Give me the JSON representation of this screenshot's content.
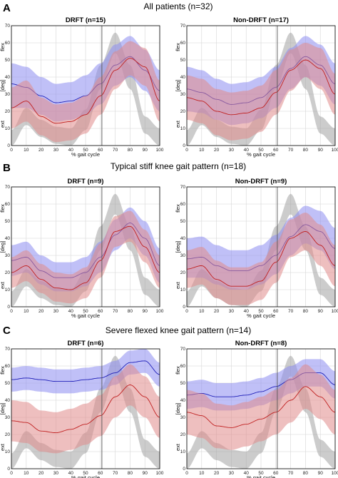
{
  "figure": {
    "rows": [
      {
        "letter": "A",
        "title": "All patients (n=32)"
      },
      {
        "letter": "B",
        "title": "Typical stiff knee gait pattern (n=18)"
      },
      {
        "letter": "C",
        "title": "Severe flexed knee gait pattern (n=14)"
      }
    ]
  },
  "colors": {
    "normal_band": "#9a9a9a",
    "pre_band": "#8c8cf0",
    "pre_line": "#2020b8",
    "post_band": "#e08a8a",
    "post_line": "#c02020",
    "axis": "#000000",
    "grid": "#d6d6d6"
  },
  "chart_data": [
    {
      "type": "line",
      "row": 0,
      "col": 0,
      "title": "DRFT (n=15)",
      "xlabel": "% gait cycle",
      "ylabel": "[deg]",
      "y_top_label": "flex",
      "y_bottom_label": "ext",
      "xlim": [
        0,
        100
      ],
      "ylim": [
        0,
        70
      ],
      "xticks": [
        0,
        10,
        20,
        30,
        40,
        50,
        60,
        70,
        80,
        90,
        100
      ],
      "yticks": [
        0,
        10,
        20,
        30,
        40,
        50,
        60,
        70
      ],
      "grid": true,
      "toe_off_x": 61,
      "x": [
        0,
        10,
        20,
        30,
        40,
        50,
        60,
        70,
        80,
        90,
        100
      ],
      "series": [
        {
          "role": "normal",
          "mean": [
            4,
            17,
            10,
            6,
            5,
            15,
            40,
            60,
            40,
            12,
            5
          ],
          "lower": [
            0,
            12,
            5,
            1,
            0,
            9,
            33,
            54,
            33,
            7,
            0
          ],
          "upper": [
            9,
            22,
            15,
            11,
            10,
            21,
            47,
            66,
            47,
            17,
            10
          ]
        },
        {
          "role": "pre",
          "mean": [
            36,
            34,
            29,
            25,
            26,
            29,
            36,
            47,
            52,
            44,
            32
          ],
          "lower": [
            22,
            22,
            18,
            14,
            15,
            18,
            24,
            35,
            40,
            32,
            20
          ],
          "upper": [
            48,
            46,
            40,
            36,
            37,
            41,
            48,
            59,
            64,
            56,
            44
          ]
        },
        {
          "role": "post",
          "mean": [
            22,
            26,
            17,
            13,
            14,
            18,
            29,
            44,
            51,
            46,
            26
          ],
          "lower": [
            10,
            14,
            6,
            2,
            3,
            7,
            18,
            33,
            41,
            35,
            14
          ],
          "upper": [
            34,
            38,
            28,
            24,
            25,
            29,
            40,
            55,
            61,
            57,
            38
          ]
        }
      ]
    },
    {
      "type": "line",
      "row": 0,
      "col": 1,
      "title": "Non-DRFT (n=17)",
      "xlabel": "% gait cycle",
      "ylabel": "[deg]",
      "y_top_label": "flex",
      "y_bottom_label": "ext",
      "xlim": [
        0,
        100
      ],
      "ylim": [
        0,
        70
      ],
      "xticks": [
        0,
        10,
        20,
        30,
        40,
        50,
        60,
        70,
        80,
        90,
        100
      ],
      "yticks": [
        0,
        10,
        20,
        30,
        40,
        50,
        60,
        70
      ],
      "grid": true,
      "toe_off_x": 61,
      "x": [
        0,
        10,
        20,
        30,
        40,
        50,
        60,
        70,
        80,
        90,
        100
      ],
      "series": [
        {
          "role": "normal",
          "mean": [
            4,
            17,
            10,
            6,
            5,
            15,
            40,
            60,
            40,
            12,
            5
          ],
          "lower": [
            0,
            12,
            5,
            1,
            0,
            9,
            33,
            54,
            33,
            7,
            0
          ],
          "upper": [
            9,
            22,
            15,
            11,
            10,
            21,
            47,
            66,
            47,
            17,
            10
          ]
        },
        {
          "role": "pre",
          "mean": [
            33,
            31,
            27,
            24,
            25,
            28,
            34,
            45,
            52,
            47,
            36
          ],
          "lower": [
            20,
            19,
            15,
            12,
            13,
            16,
            22,
            33,
            40,
            35,
            24
          ],
          "upper": [
            46,
            44,
            39,
            36,
            37,
            40,
            46,
            57,
            64,
            59,
            48
          ]
        },
        {
          "role": "post",
          "mean": [
            28,
            26,
            20,
            18,
            19,
            22,
            31,
            44,
            50,
            45,
            30
          ],
          "lower": [
            15,
            13,
            6,
            3,
            4,
            8,
            18,
            32,
            40,
            33,
            18
          ],
          "upper": [
            41,
            39,
            33,
            31,
            32,
            35,
            44,
            56,
            60,
            57,
            42
          ]
        }
      ]
    },
    {
      "type": "line",
      "row": 1,
      "col": 0,
      "title": "DRFT (n=9)",
      "xlabel": "% gait cycle",
      "ylabel": "[deg]",
      "y_top_label": "flex",
      "y_bottom_label": "ext",
      "xlim": [
        0,
        100
      ],
      "ylim": [
        0,
        70
      ],
      "xticks": [
        0,
        10,
        20,
        30,
        40,
        50,
        60,
        70,
        80,
        90,
        100
      ],
      "yticks": [
        0,
        10,
        20,
        30,
        40,
        50,
        60,
        70
      ],
      "grid": true,
      "toe_off_x": 61,
      "x": [
        0,
        10,
        20,
        30,
        40,
        50,
        60,
        70,
        80,
        90,
        100
      ],
      "series": [
        {
          "role": "normal",
          "mean": [
            4,
            17,
            10,
            6,
            5,
            15,
            40,
            60,
            40,
            12,
            5
          ],
          "lower": [
            0,
            12,
            5,
            1,
            0,
            9,
            33,
            54,
            33,
            7,
            0
          ],
          "upper": [
            9,
            22,
            15,
            11,
            10,
            21,
            47,
            66,
            47,
            17,
            10
          ]
        },
        {
          "role": "pre",
          "mean": [
            27,
            29,
            21,
            17,
            17,
            20,
            29,
            42,
            49,
            40,
            24
          ],
          "lower": [
            18,
            20,
            13,
            9,
            9,
            12,
            20,
            33,
            40,
            30,
            14
          ],
          "upper": [
            36,
            38,
            30,
            26,
            26,
            29,
            38,
            51,
            58,
            50,
            34
          ]
        },
        {
          "role": "post",
          "mean": [
            20,
            24,
            16,
            11,
            10,
            14,
            27,
            44,
            47,
            35,
            20
          ],
          "lower": [
            11,
            15,
            8,
            3,
            2,
            5,
            17,
            35,
            38,
            26,
            11
          ],
          "upper": [
            29,
            33,
            25,
            20,
            19,
            23,
            37,
            53,
            56,
            45,
            30
          ]
        }
      ]
    },
    {
      "type": "line",
      "row": 1,
      "col": 1,
      "title": "Non-DRFT (n=9)",
      "xlabel": "% gait cycle",
      "ylabel": "[deg]",
      "y_top_label": "flex",
      "y_bottom_label": "ext",
      "xlim": [
        0,
        100
      ],
      "ylim": [
        0,
        70
      ],
      "xticks": [
        0,
        10,
        20,
        30,
        40,
        50,
        60,
        70,
        80,
        90,
        100
      ],
      "yticks": [
        0,
        10,
        20,
        30,
        40,
        50,
        60,
        70
      ],
      "grid": true,
      "toe_off_x": 61,
      "x": [
        0,
        10,
        20,
        30,
        40,
        50,
        60,
        70,
        80,
        90,
        100
      ],
      "series": [
        {
          "role": "normal",
          "mean": [
            4,
            17,
            10,
            6,
            5,
            15,
            40,
            60,
            40,
            12,
            5
          ],
          "lower": [
            0,
            12,
            5,
            1,
            0,
            9,
            33,
            54,
            33,
            7,
            0
          ],
          "upper": [
            9,
            22,
            15,
            11,
            10,
            21,
            47,
            66,
            47,
            17,
            10
          ]
        },
        {
          "role": "pre",
          "mean": [
            28,
            29,
            24,
            21,
            21,
            24,
            30,
            41,
            48,
            44,
            34
          ],
          "lower": [
            17,
            17,
            13,
            10,
            10,
            13,
            19,
            30,
            37,
            33,
            22
          ],
          "upper": [
            40,
            41,
            36,
            33,
            33,
            36,
            42,
            52,
            59,
            56,
            46
          ]
        },
        {
          "role": "post",
          "mean": [
            22,
            24,
            16,
            12,
            12,
            15,
            26,
            40,
            44,
            36,
            24
          ],
          "lower": [
            11,
            13,
            5,
            1,
            1,
            4,
            14,
            29,
            33,
            24,
            12
          ],
          "upper": [
            33,
            35,
            27,
            23,
            23,
            26,
            38,
            51,
            55,
            48,
            36
          ]
        }
      ]
    },
    {
      "type": "line",
      "row": 2,
      "col": 0,
      "title": "DRFT (n=6)",
      "xlabel": "% gait cycle",
      "ylabel": "[deg]",
      "y_top_label": "flex",
      "y_bottom_label": "ext",
      "xlim": [
        0,
        100
      ],
      "ylim": [
        0,
        70
      ],
      "xticks": [
        0,
        10,
        20,
        30,
        40,
        50,
        60,
        70,
        80,
        90,
        100
      ],
      "yticks": [
        0,
        10,
        20,
        30,
        40,
        50,
        60,
        70
      ],
      "grid": true,
      "toe_off_x": 61,
      "x": [
        0,
        10,
        20,
        30,
        40,
        50,
        60,
        70,
        80,
        90,
        100
      ],
      "series": [
        {
          "role": "normal",
          "mean": [
            4,
            17,
            10,
            6,
            5,
            15,
            40,
            60,
            40,
            12,
            5
          ],
          "lower": [
            0,
            12,
            5,
            1,
            0,
            9,
            33,
            54,
            33,
            7,
            0
          ],
          "upper": [
            9,
            22,
            15,
            11,
            10,
            21,
            47,
            66,
            47,
            17,
            10
          ]
        },
        {
          "role": "pre",
          "mean": [
            52,
            53,
            52,
            51,
            51,
            52,
            53,
            56,
            62,
            63,
            55
          ],
          "lower": [
            45,
            46,
            45,
            44,
            44,
            45,
            46,
            49,
            55,
            56,
            48
          ],
          "upper": [
            59,
            60,
            59,
            58,
            58,
            59,
            60,
            63,
            69,
            70,
            62
          ]
        },
        {
          "role": "post",
          "mean": [
            28,
            27,
            22,
            21,
            23,
            26,
            31,
            42,
            49,
            42,
            30
          ],
          "lower": [
            16,
            15,
            10,
            9,
            11,
            14,
            19,
            30,
            37,
            30,
            18
          ],
          "upper": [
            40,
            39,
            34,
            33,
            35,
            38,
            43,
            54,
            61,
            54,
            42
          ]
        }
      ]
    },
    {
      "type": "line",
      "row": 2,
      "col": 1,
      "title": "Non-DRFT (n=8)",
      "xlabel": "% gait cycle",
      "ylabel": "[deg]",
      "y_top_label": "flex",
      "y_bottom_label": "ext",
      "xlim": [
        0,
        100
      ],
      "ylim": [
        0,
        70
      ],
      "xticks": [
        0,
        10,
        20,
        30,
        40,
        50,
        60,
        70,
        80,
        90,
        100
      ],
      "yticks": [
        0,
        10,
        20,
        30,
        40,
        50,
        60,
        70
      ],
      "grid": true,
      "toe_off_x": 61,
      "x": [
        0,
        10,
        20,
        30,
        40,
        50,
        60,
        70,
        80,
        90,
        100
      ],
      "series": [
        {
          "role": "normal",
          "mean": [
            4,
            17,
            10,
            6,
            5,
            15,
            40,
            60,
            40,
            12,
            5
          ],
          "lower": [
            0,
            12,
            5,
            1,
            0,
            9,
            33,
            54,
            33,
            7,
            0
          ],
          "upper": [
            9,
            22,
            15,
            11,
            10,
            21,
            47,
            66,
            47,
            17,
            10
          ]
        },
        {
          "role": "pre",
          "mean": [
            43,
            44,
            42,
            42,
            43,
            45,
            48,
            52,
            56,
            56,
            49
          ],
          "lower": [
            35,
            36,
            34,
            34,
            35,
            37,
            40,
            44,
            48,
            48,
            41
          ],
          "upper": [
            51,
            52,
            50,
            50,
            51,
            53,
            56,
            60,
            64,
            64,
            57
          ]
        },
        {
          "role": "post",
          "mean": [
            33,
            31,
            25,
            24,
            26,
            29,
            33,
            40,
            48,
            42,
            33
          ],
          "lower": [
            20,
            18,
            12,
            11,
            13,
            16,
            20,
            27,
            35,
            29,
            20
          ],
          "upper": [
            46,
            44,
            38,
            37,
            39,
            42,
            46,
            53,
            61,
            55,
            46
          ]
        }
      ]
    }
  ]
}
